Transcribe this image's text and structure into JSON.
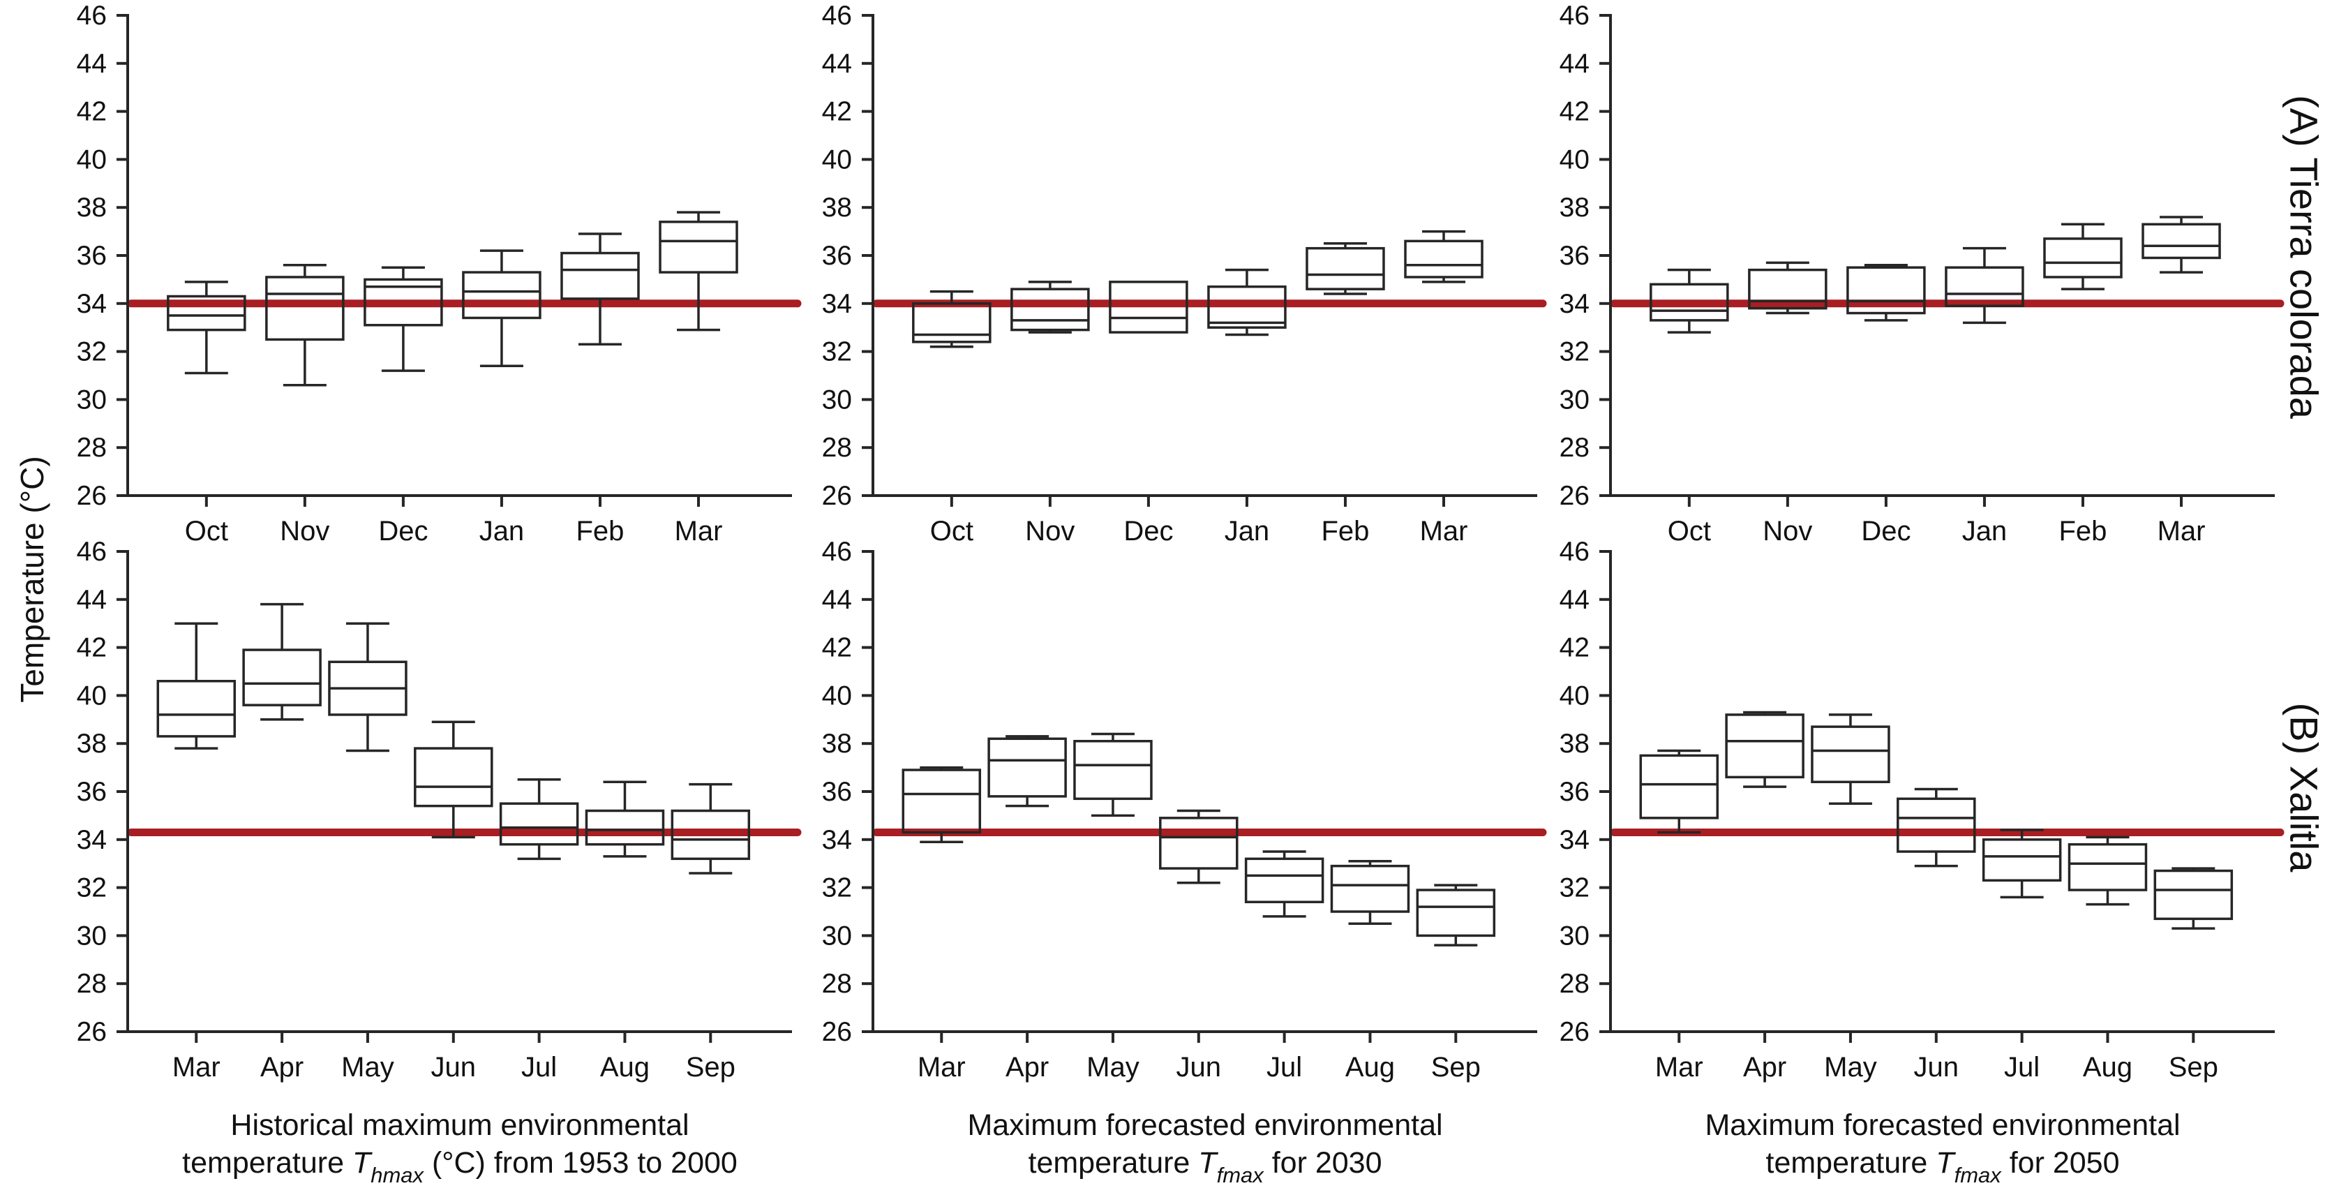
{
  "chart_data": {
    "type": "box",
    "y_axis": {
      "label": "Temperature (°C)",
      "min": 26,
      "max": 46,
      "tick_step": 2
    },
    "grid": "off",
    "box_stroke_color": "#262626",
    "reference_line_color": "#a81e22",
    "rows": [
      {
        "id": "A",
        "label": "(A) Tierra colorada",
        "reference_value": 34.0,
        "categories": [
          "Oct",
          "Nov",
          "Dec",
          "Jan",
          "Feb",
          "Mar"
        ],
        "panels": [
          {
            "column": 0,
            "boxes": [
              {
                "m": "Oct",
                "lo": 31.1,
                "q1": 32.9,
                "med": 33.5,
                "q3": 34.3,
                "hi": 34.9
              },
              {
                "m": "Nov",
                "lo": 30.6,
                "q1": 32.5,
                "med": 34.4,
                "q3": 35.1,
                "hi": 35.6
              },
              {
                "m": "Dec",
                "lo": 31.2,
                "q1": 33.1,
                "med": 34.7,
                "q3": 35.0,
                "hi": 35.5
              },
              {
                "m": "Jan",
                "lo": 31.4,
                "q1": 33.4,
                "med": 34.5,
                "q3": 35.3,
                "hi": 36.2
              },
              {
                "m": "Feb",
                "lo": 32.3,
                "q1": 34.2,
                "med": 35.4,
                "q3": 36.1,
                "hi": 36.9
              },
              {
                "m": "Mar",
                "lo": 32.9,
                "q1": 35.3,
                "med": 36.6,
                "q3": 37.4,
                "hi": 37.8
              }
            ]
          },
          {
            "column": 1,
            "boxes": [
              {
                "m": "Oct",
                "lo": 32.2,
                "q1": 32.4,
                "med": 32.7,
                "q3": 34.0,
                "hi": 34.5
              },
              {
                "m": "Nov",
                "lo": 32.8,
                "q1": 32.9,
                "med": 33.3,
                "q3": 34.6,
                "hi": 34.9
              },
              {
                "m": "Dec",
                "lo": 32.8,
                "q1": 32.8,
                "med": 33.4,
                "q3": 34.9,
                "hi": 34.9
              },
              {
                "m": "Jan",
                "lo": 32.7,
                "q1": 33.0,
                "med": 33.2,
                "q3": 34.7,
                "hi": 35.4
              },
              {
                "m": "Feb",
                "lo": 34.4,
                "q1": 34.6,
                "med": 35.2,
                "q3": 36.3,
                "hi": 36.5
              },
              {
                "m": "Mar",
                "lo": 34.9,
                "q1": 35.1,
                "med": 35.6,
                "q3": 36.6,
                "hi": 37.0
              }
            ]
          },
          {
            "column": 2,
            "boxes": [
              {
                "m": "Oct",
                "lo": 32.8,
                "q1": 33.3,
                "med": 33.7,
                "q3": 34.8,
                "hi": 35.4
              },
              {
                "m": "Nov",
                "lo": 33.6,
                "q1": 33.8,
                "med": 34.1,
                "q3": 35.4,
                "hi": 35.7
              },
              {
                "m": "Dec",
                "lo": 33.3,
                "q1": 33.6,
                "med": 34.1,
                "q3": 35.5,
                "hi": 35.6
              },
              {
                "m": "Jan",
                "lo": 33.2,
                "q1": 33.9,
                "med": 34.4,
                "q3": 35.5,
                "hi": 36.3
              },
              {
                "m": "Feb",
                "lo": 34.6,
                "q1": 35.1,
                "med": 35.7,
                "q3": 36.7,
                "hi": 37.3
              },
              {
                "m": "Mar",
                "lo": 35.3,
                "q1": 35.9,
                "med": 36.4,
                "q3": 37.3,
                "hi": 37.6
              }
            ]
          }
        ]
      },
      {
        "id": "B",
        "label": "(B) Xalitla",
        "reference_value": 34.3,
        "categories": [
          "Mar",
          "Apr",
          "May",
          "Jun",
          "Jul",
          "Aug",
          "Sep"
        ],
        "panels": [
          {
            "column": 0,
            "boxes": [
              {
                "m": "Mar",
                "lo": 37.8,
                "q1": 38.3,
                "med": 39.2,
                "q3": 40.6,
                "hi": 43.0
              },
              {
                "m": "Apr",
                "lo": 39.0,
                "q1": 39.6,
                "med": 40.5,
                "q3": 41.9,
                "hi": 43.8
              },
              {
                "m": "May",
                "lo": 37.7,
                "q1": 39.2,
                "med": 40.3,
                "q3": 41.4,
                "hi": 43.0
              },
              {
                "m": "Jun",
                "lo": 34.1,
                "q1": 35.4,
                "med": 36.2,
                "q3": 37.8,
                "hi": 38.9
              },
              {
                "m": "Jul",
                "lo": 33.2,
                "q1": 33.8,
                "med": 34.5,
                "q3": 35.5,
                "hi": 36.5
              },
              {
                "m": "Aug",
                "lo": 33.3,
                "q1": 33.8,
                "med": 34.4,
                "q3": 35.2,
                "hi": 36.4
              },
              {
                "m": "Sep",
                "lo": 32.6,
                "q1": 33.2,
                "med": 34.0,
                "q3": 35.2,
                "hi": 36.3
              }
            ]
          },
          {
            "column": 1,
            "boxes": [
              {
                "m": "Mar",
                "lo": 33.9,
                "q1": 34.3,
                "med": 35.9,
                "q3": 36.9,
                "hi": 37.0
              },
              {
                "m": "Apr",
                "lo": 35.4,
                "q1": 35.8,
                "med": 37.3,
                "q3": 38.2,
                "hi": 38.3
              },
              {
                "m": "May",
                "lo": 35.0,
                "q1": 35.7,
                "med": 37.1,
                "q3": 38.1,
                "hi": 38.4
              },
              {
                "m": "Jun",
                "lo": 32.2,
                "q1": 32.8,
                "med": 34.1,
                "q3": 34.9,
                "hi": 35.2
              },
              {
                "m": "Jul",
                "lo": 30.8,
                "q1": 31.4,
                "med": 32.5,
                "q3": 33.2,
                "hi": 33.5
              },
              {
                "m": "Aug",
                "lo": 30.5,
                "q1": 31.0,
                "med": 32.1,
                "q3": 32.9,
                "hi": 33.1
              },
              {
                "m": "Sep",
                "lo": 29.6,
                "q1": 30.0,
                "med": 31.2,
                "q3": 31.9,
                "hi": 32.1
              }
            ]
          },
          {
            "column": 2,
            "boxes": [
              {
                "m": "Mar",
                "lo": 34.3,
                "q1": 34.9,
                "med": 36.3,
                "q3": 37.5,
                "hi": 37.7
              },
              {
                "m": "Apr",
                "lo": 36.2,
                "q1": 36.6,
                "med": 38.1,
                "q3": 39.2,
                "hi": 39.3
              },
              {
                "m": "May",
                "lo": 35.5,
                "q1": 36.4,
                "med": 37.7,
                "q3": 38.7,
                "hi": 39.2
              },
              {
                "m": "Jun",
                "lo": 32.9,
                "q1": 33.5,
                "med": 34.9,
                "q3": 35.7,
                "hi": 36.1
              },
              {
                "m": "Jul",
                "lo": 31.6,
                "q1": 32.3,
                "med": 33.3,
                "q3": 34.0,
                "hi": 34.4
              },
              {
                "m": "Aug",
                "lo": 31.3,
                "q1": 31.9,
                "med": 33.0,
                "q3": 33.8,
                "hi": 34.1
              },
              {
                "m": "Sep",
                "lo": 30.3,
                "q1": 30.7,
                "med": 31.9,
                "q3": 32.7,
                "hi": 32.8
              }
            ]
          }
        ]
      }
    ],
    "columns": [
      {
        "caption_line1": "Historical maximum environmental",
        "caption_line2": [
          {
            "text": "temperature "
          },
          {
            "text": "T",
            "style": "italic"
          },
          {
            "text": "hmax",
            "style": "italic-sub"
          },
          {
            "text": " (°C) from 1953 to 2000"
          }
        ]
      },
      {
        "caption_line1": "Maximum forecasted environmental",
        "caption_line2": [
          {
            "text": "temperature "
          },
          {
            "text": "T",
            "style": "italic"
          },
          {
            "text": "fmax",
            "style": "italic-sub"
          },
          {
            "text": " for 2030"
          }
        ]
      },
      {
        "caption_line1": "Maximum forecasted environmental",
        "caption_line2": [
          {
            "text": "temperature "
          },
          {
            "text": "T",
            "style": "italic"
          },
          {
            "text": "fmax",
            "style": "italic-sub"
          },
          {
            "text": " for 2050"
          }
        ]
      }
    ]
  }
}
